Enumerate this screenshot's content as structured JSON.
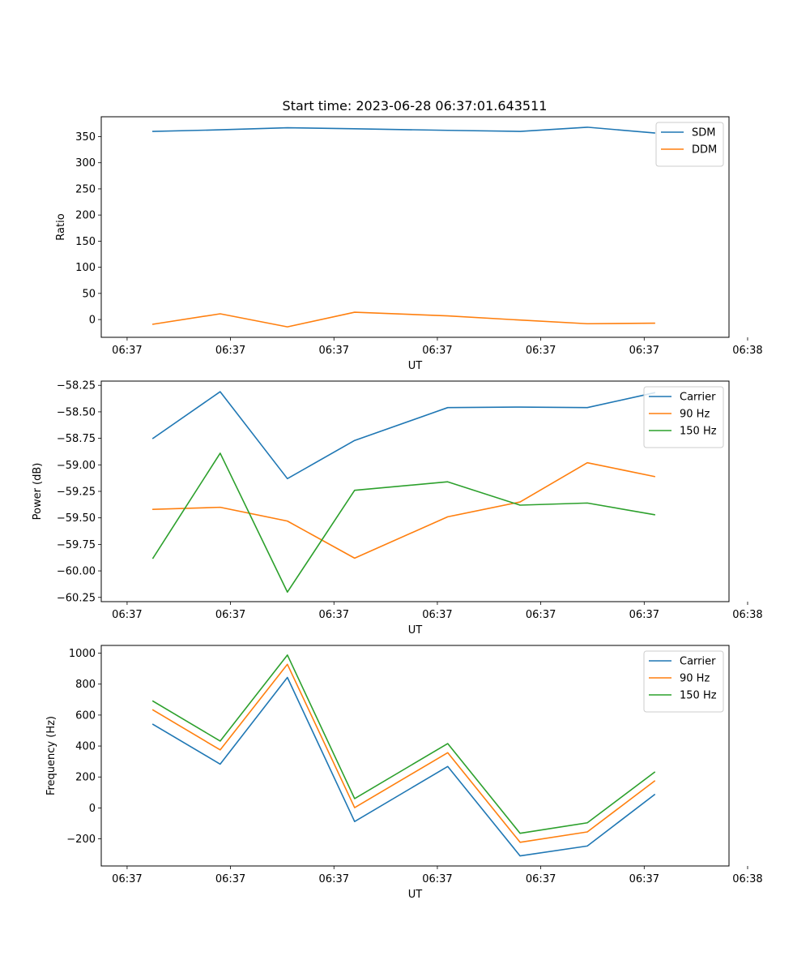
{
  "title": "Start time: 2023-06-28 06:37:01.643511",
  "colors": {
    "blue": "#1f77b4",
    "orange": "#ff7f0e",
    "green": "#2ca02c"
  },
  "chart_data": [
    {
      "type": "line",
      "xlabel": "UT",
      "ylabel": "Ratio",
      "xtick_labels": [
        "06:37",
        "06:37",
        "06:37",
        "06:37",
        "06:37",
        "06:37",
        "06:38"
      ],
      "yticks": [
        0,
        50,
        100,
        150,
        200,
        250,
        300,
        350
      ],
      "ylim": [
        -34,
        388
      ],
      "xlim": [
        -0.25,
        5.82
      ],
      "legend": "top-right",
      "x": [
        0.25,
        0.9,
        1.55,
        2.2,
        3.1,
        3.8,
        4.45,
        5.1
      ],
      "series": [
        {
          "name": "SDM",
          "color": "#1f77b4",
          "values": [
            360,
            363,
            367,
            365,
            362,
            360,
            368,
            357
          ]
        },
        {
          "name": "DDM",
          "color": "#ff7f0e",
          "values": [
            -9,
            11,
            -14,
            14,
            7,
            -1,
            -8,
            -7
          ]
        }
      ]
    },
    {
      "type": "line",
      "xlabel": "UT",
      "ylabel": "Power (dB)",
      "xtick_labels": [
        "06:37",
        "06:37",
        "06:37",
        "06:37",
        "06:37",
        "06:37",
        "06:38"
      ],
      "yticks": [
        -60.25,
        -60.0,
        -59.75,
        -59.5,
        -59.25,
        -59.0,
        -58.75,
        -58.5,
        -58.25
      ],
      "ytick_labels": [
        "−60.25",
        "−60.00",
        "−59.75",
        "−59.50",
        "−59.25",
        "−59.00",
        "−58.75",
        "−58.50",
        "−58.25"
      ],
      "ylim": [
        -60.29,
        -58.21
      ],
      "xlim": [
        -0.25,
        5.82
      ],
      "legend": "top-right",
      "x": [
        0.25,
        0.9,
        1.55,
        2.2,
        3.1,
        3.8,
        4.45,
        5.1
      ],
      "series": [
        {
          "name": "Carrier",
          "color": "#1f77b4",
          "values": [
            -58.75,
            -58.31,
            -59.13,
            -58.77,
            -58.46,
            -58.455,
            -58.46,
            -58.32
          ]
        },
        {
          "name": "90 Hz",
          "color": "#ff7f0e",
          "values": [
            -59.42,
            -59.4,
            -59.53,
            -59.88,
            -59.49,
            -59.35,
            -58.98,
            -59.11
          ]
        },
        {
          "name": "150 Hz",
          "color": "#2ca02c",
          "values": [
            -59.88,
            -58.89,
            -60.2,
            -59.24,
            -59.16,
            -59.38,
            -59.36,
            -59.47
          ]
        }
      ]
    },
    {
      "type": "line",
      "xlabel": "UT",
      "ylabel": "Frequency (Hz)",
      "xtick_labels": [
        "06:37",
        "06:37",
        "06:37",
        "06:37",
        "06:37",
        "06:37",
        "06:38"
      ],
      "yticks": [
        -200,
        0,
        200,
        400,
        600,
        800,
        1000
      ],
      "ytick_labels": [
        "−200",
        "0",
        "200",
        "400",
        "600",
        "800",
        "1000"
      ],
      "ylim": [
        -375,
        1050
      ],
      "xlim": [
        -0.25,
        5.82
      ],
      "legend": "top-right",
      "x": [
        0.25,
        0.9,
        1.55,
        2.2,
        3.1,
        3.8,
        4.45,
        5.1
      ],
      "series": [
        {
          "name": "Carrier",
          "color": "#1f77b4",
          "values": [
            540,
            283,
            843,
            -88,
            268,
            -310,
            -246,
            86
          ]
        },
        {
          "name": "90 Hz",
          "color": "#ff7f0e",
          "values": [
            633,
            375,
            928,
            2,
            357,
            -222,
            -155,
            174
          ]
        },
        {
          "name": "150 Hz",
          "color": "#2ca02c",
          "values": [
            690,
            432,
            988,
            60,
            416,
            -164,
            -96,
            231
          ]
        }
      ]
    }
  ]
}
